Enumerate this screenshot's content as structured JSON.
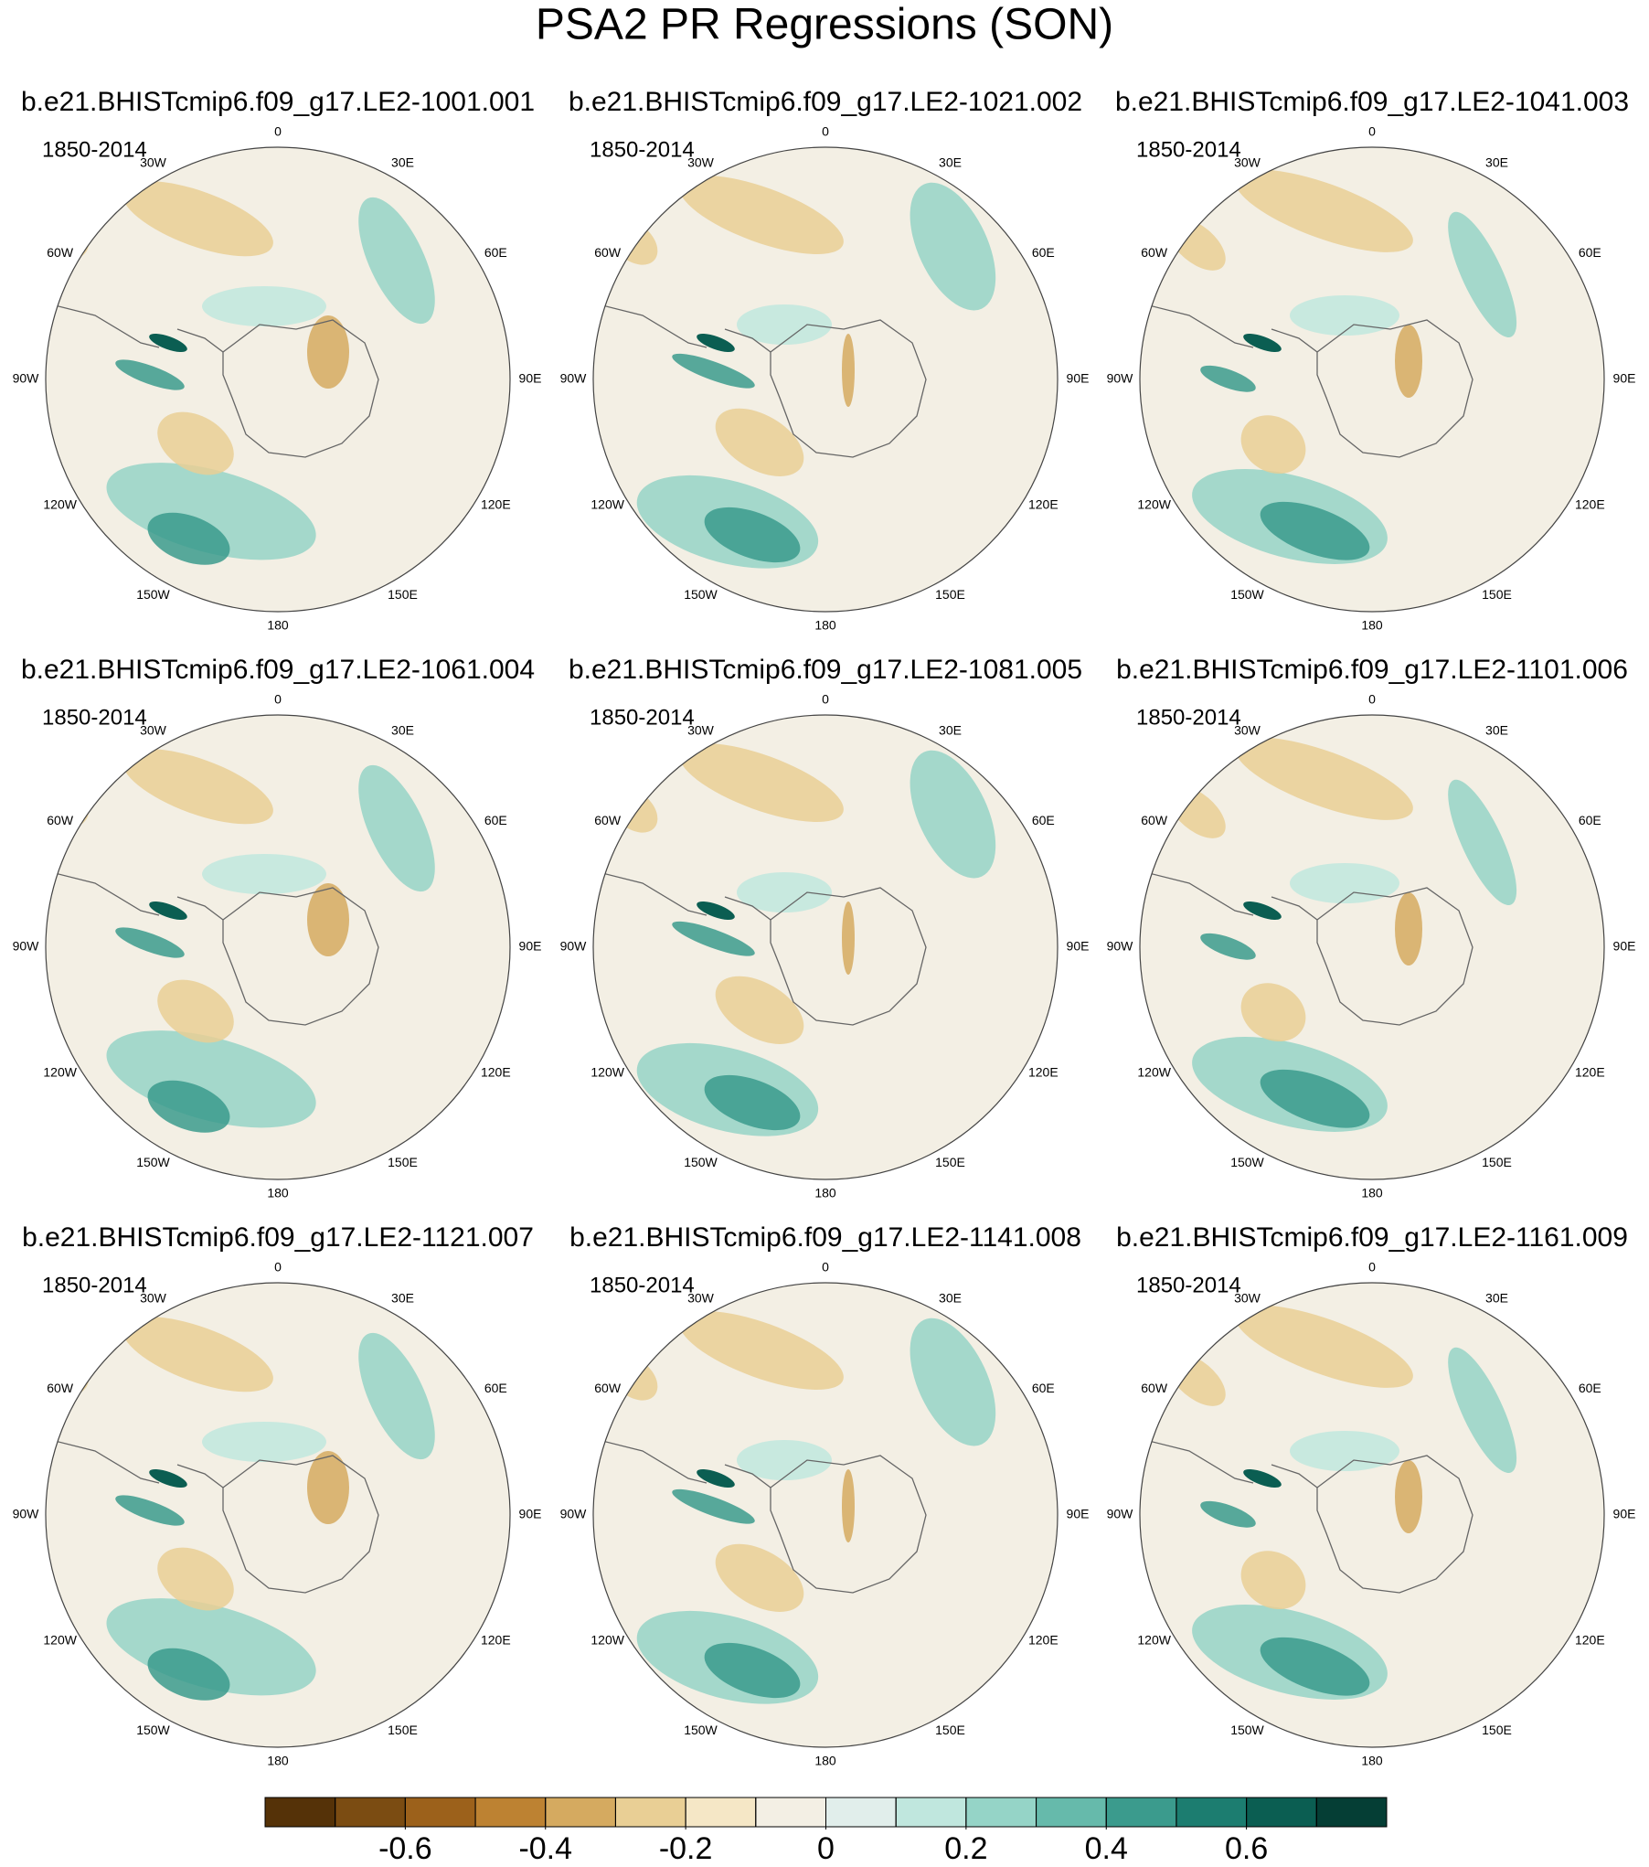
{
  "title": "PSA2 PR Regressions (SON)",
  "panels": [
    {
      "title": "b.e21.BHISTcmip6.f09_g17.LE2-1001.001",
      "period": "1850-2014"
    },
    {
      "title": "b.e21.BHISTcmip6.f09_g17.LE2-1021.002",
      "period": "1850-2014"
    },
    {
      "title": "b.e21.BHISTcmip6.f09_g17.LE2-1041.003",
      "period": "1850-2014"
    },
    {
      "title": "b.e21.BHISTcmip6.f09_g17.LE2-1061.004",
      "period": "1850-2014"
    },
    {
      "title": "b.e21.BHISTcmip6.f09_g17.LE2-1081.005",
      "period": "1850-2014"
    },
    {
      "title": "b.e21.BHISTcmip6.f09_g17.LE2-1101.006",
      "period": "1850-2014"
    },
    {
      "title": "b.e21.BHISTcmip6.f09_g17.LE2-1121.007",
      "period": "1850-2014"
    },
    {
      "title": "b.e21.BHISTcmip6.f09_g17.LE2-1141.008",
      "period": "1850-2014"
    },
    {
      "title": "b.e21.BHISTcmip6.f09_g17.LE2-1161.009",
      "period": "1850-2014"
    }
  ],
  "lon_labels": [
    "0",
    "30E",
    "60E",
    "90E",
    "120E",
    "150E",
    "180",
    "150W",
    "120W",
    "90W",
    "60W",
    "30W"
  ],
  "colorbar": {
    "colors": [
      "#553208",
      "#7b4c12",
      "#9c611b",
      "#bd8232",
      "#d5aa60",
      "#e9cf95",
      "#f5e7c6",
      "#f3efe4",
      "#e1eeeb",
      "#c0e7de",
      "#95d4c7",
      "#66baab",
      "#3b9b8d",
      "#1c7d70",
      "#0b5e52",
      "#053e35"
    ],
    "levels": [
      -0.7,
      -0.6,
      -0.5,
      -0.4,
      -0.3,
      -0.2,
      -0.1,
      0,
      0.1,
      0.2,
      0.3,
      0.4,
      0.5,
      0.6,
      0.7
    ],
    "ticks": [
      -0.6,
      -0.4,
      -0.2,
      0,
      0.2,
      0.4,
      0.6
    ]
  }
}
